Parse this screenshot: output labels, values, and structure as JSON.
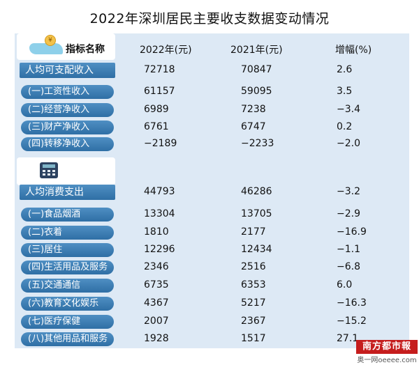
{
  "title": "2022年深圳居民主要收支数据变动情况",
  "header": {
    "label": "指标名称",
    "col_2022": "2022年(元)",
    "col_2021": "2021年(元)",
    "col_change": "增幅(%)"
  },
  "rows": [
    {
      "label": "人均可支配收入",
      "v2022": "72718",
      "v2021": "70847",
      "change": "2.6"
    },
    {
      "label": "(一)工资性收入",
      "v2022": "61157",
      "v2021": "59095",
      "change": "3.5"
    },
    {
      "label": "(二)经营净收入",
      "v2022": "6989",
      "v2021": "7238",
      "change": "−3.4"
    },
    {
      "label": "(三)财产净收入",
      "v2022": "6761",
      "v2021": "6747",
      "change": "0.2"
    },
    {
      "label": "(四)转移净收入",
      "v2022": "−2189",
      "v2021": "−2233",
      "change": "−2.0"
    },
    {
      "label": "人均消费支出",
      "v2022": "44793",
      "v2021": "46286",
      "change": "−3.2"
    },
    {
      "label": "(一)食品烟酒",
      "v2022": "13304",
      "v2021": "13705",
      "change": "−2.9"
    },
    {
      "label": "(二)衣着",
      "v2022": "1810",
      "v2021": "2177",
      "change": "−16.9"
    },
    {
      "label": "(三)居住",
      "v2022": "12296",
      "v2021": "12434",
      "change": "−1.1"
    },
    {
      "label": "(四)生活用品及服务",
      "v2022": "2346",
      "v2021": "2516",
      "change": "−6.8"
    },
    {
      "label": "(五)交通通信",
      "v2022": "6735",
      "v2021": "6353",
      "change": "6.0"
    },
    {
      "label": "(六)教育文化娱乐",
      "v2022": "4367",
      "v2021": "5217",
      "change": "−16.3"
    },
    {
      "label": "(七)医疗保健",
      "v2022": "2007",
      "v2021": "2367",
      "change": "−15.2"
    },
    {
      "label": "(八)其他用品和服务",
      "v2022": "1928",
      "v2021": "1517",
      "change": "27.1"
    }
  ],
  "brand": {
    "name": "南方都市報",
    "site": "奥一网oeeee.com"
  },
  "icons": [
    "coin-hand-icon",
    "calculator-icon"
  ],
  "colors": {
    "label_blue": "#3f80b8",
    "panel": "#dde9f5",
    "brand_red": "#c51d1d"
  }
}
